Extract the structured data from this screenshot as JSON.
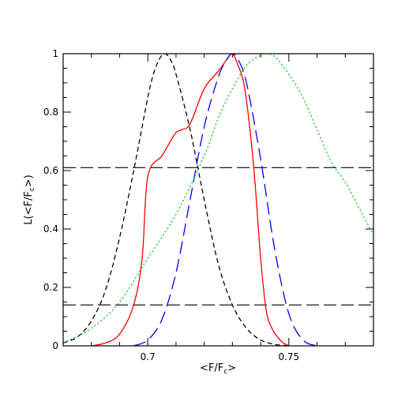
{
  "chart_data": {
    "type": "line",
    "xlabel_main": "<F/F",
    "xlabel_sub": "c",
    "xlabel_end": ">",
    "ylabel_main": "L(<F/F",
    "ylabel_sub": "c",
    "ylabel_end": ">)",
    "xlim": [
      0.67,
      0.78
    ],
    "ylim": [
      0,
      1
    ],
    "x_ticks": [
      {
        "value": 0.7,
        "label": "0.7"
      },
      {
        "value": 0.75,
        "label": "0.75"
      }
    ],
    "y_ticks": [
      {
        "value": 0,
        "label": "0"
      },
      {
        "value": 0.2,
        "label": "0.2"
      },
      {
        "value": 0.4,
        "label": "0.4"
      },
      {
        "value": 0.6,
        "label": "0.6"
      },
      {
        "value": 0.8,
        "label": "0.8"
      },
      {
        "value": 1,
        "label": "1"
      }
    ],
    "reference_lines": [
      0.61,
      0.14
    ],
    "series": [
      {
        "color": "#000000",
        "style": "short-dash",
        "x": [
          0.67,
          0.675,
          0.68,
          0.685,
          0.69,
          0.695,
          0.7,
          0.702,
          0.704,
          0.706,
          0.708,
          0.71,
          0.715,
          0.72,
          0.725,
          0.73,
          0.735,
          0.74,
          0.745,
          0.75
        ],
        "y": [
          0.01,
          0.03,
          0.085,
          0.19,
          0.37,
          0.6,
          0.85,
          0.93,
          0.98,
          1.0,
          0.98,
          0.93,
          0.74,
          0.5,
          0.28,
          0.14,
          0.06,
          0.02,
          0.005,
          0.0
        ]
      },
      {
        "color": "#ff0000",
        "style": "solid",
        "x": [
          0.68,
          0.685,
          0.69,
          0.695,
          0.698,
          0.7,
          0.705,
          0.708,
          0.71,
          0.712,
          0.715,
          0.72,
          0.725,
          0.728,
          0.73,
          0.732,
          0.734,
          0.736,
          0.738,
          0.74,
          0.742,
          0.744,
          0.746,
          0.748,
          0.75
        ],
        "y": [
          0.0,
          0.01,
          0.04,
          0.14,
          0.3,
          0.58,
          0.65,
          0.7,
          0.73,
          0.74,
          0.76,
          0.88,
          0.94,
          0.98,
          1.0,
          0.96,
          0.9,
          0.76,
          0.56,
          0.3,
          0.12,
          0.06,
          0.03,
          0.01,
          0.0
        ]
      },
      {
        "color": "#0000ff",
        "style": "long-dash",
        "x": [
          0.695,
          0.7,
          0.705,
          0.71,
          0.715,
          0.72,
          0.725,
          0.728,
          0.73,
          0.732,
          0.735,
          0.74,
          0.745,
          0.75,
          0.755,
          0.76
        ],
        "y": [
          0.0,
          0.02,
          0.09,
          0.25,
          0.5,
          0.75,
          0.92,
          0.98,
          1.0,
          0.98,
          0.9,
          0.64,
          0.33,
          0.11,
          0.02,
          0.0
        ]
      },
      {
        "color": "#00cc00",
        "style": "dotted",
        "x": [
          0.67,
          0.68,
          0.69,
          0.7,
          0.71,
          0.72,
          0.725,
          0.73,
          0.735,
          0.74,
          0.742,
          0.745,
          0.75,
          0.755,
          0.76,
          0.765,
          0.77,
          0.775,
          0.78
        ],
        "y": [
          0.01,
          0.06,
          0.15,
          0.3,
          0.45,
          0.65,
          0.78,
          0.88,
          0.96,
          0.995,
          1.0,
          0.99,
          0.93,
          0.85,
          0.74,
          0.63,
          0.56,
          0.47,
          0.38
        ]
      }
    ]
  }
}
